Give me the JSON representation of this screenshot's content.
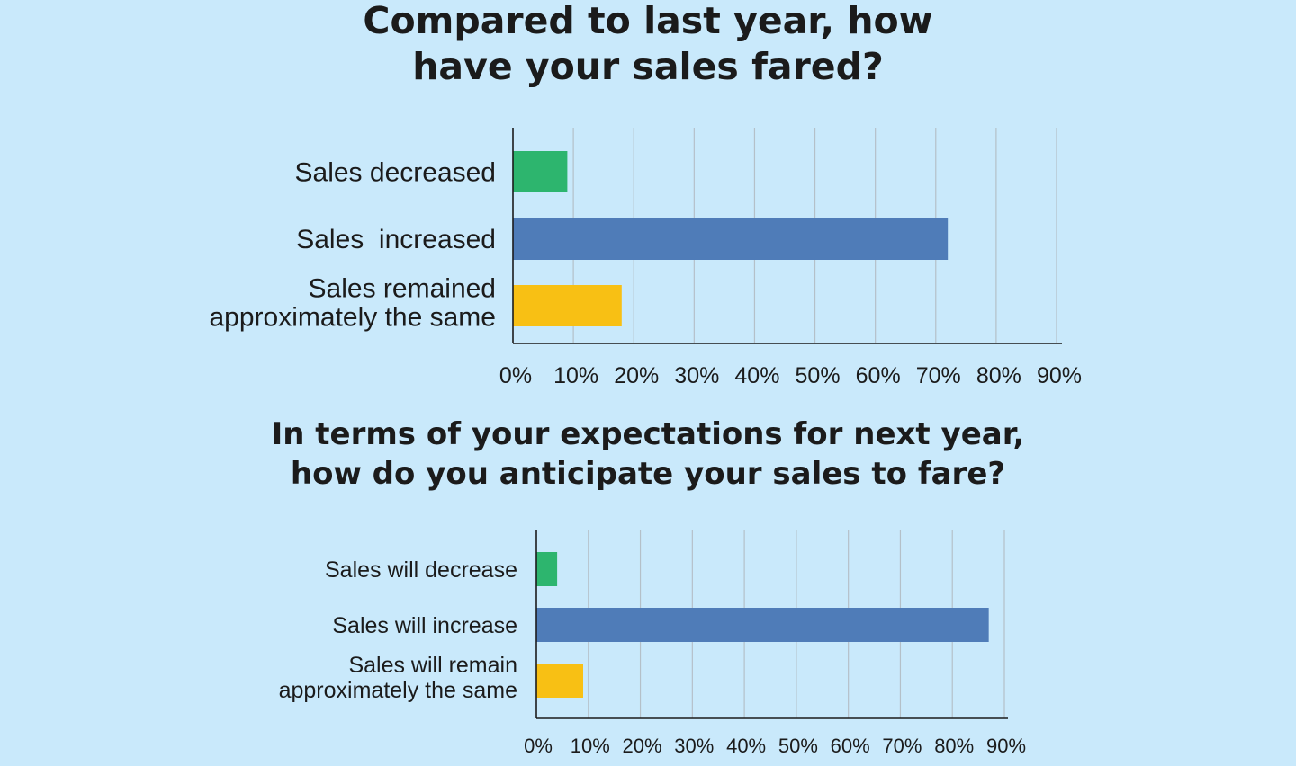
{
  "chart_data": [
    {
      "type": "bar",
      "orientation": "horizontal",
      "title_lines": [
        "Compared to last year, how",
        "have your sales fared?"
      ],
      "categories": [
        [
          "Sales decreased"
        ],
        [
          "Sales  increased"
        ],
        [
          "Sales remained",
          "approximately the same"
        ]
      ],
      "values": [
        9,
        72,
        18
      ],
      "colors": [
        "#2db56e",
        "#4f7cb8",
        "#f8c014"
      ],
      "xlim": [
        0,
        90
      ],
      "xticks": [
        "0%",
        "10%",
        "20%",
        "30%",
        "40%",
        "50%",
        "60%",
        "70%",
        "80%",
        "90%"
      ],
      "grid": true
    },
    {
      "type": "bar",
      "orientation": "horizontal",
      "title_lines": [
        "In terms of your expectations for next year,",
        "how do you anticipate your sales to fare?"
      ],
      "categories": [
        [
          "Sales will decrease"
        ],
        [
          "Sales will increase"
        ],
        [
          "Sales will remain",
          "approximately the same"
        ]
      ],
      "values": [
        4,
        87,
        9
      ],
      "colors": [
        "#2db56e",
        "#4f7cb8",
        "#f8c014"
      ],
      "xlim": [
        0,
        90
      ],
      "xticks": [
        "0%",
        "10%",
        "20%",
        "30%",
        "40%",
        "50%",
        "60%",
        "70%",
        "80%",
        "90%"
      ],
      "grid": true
    }
  ]
}
